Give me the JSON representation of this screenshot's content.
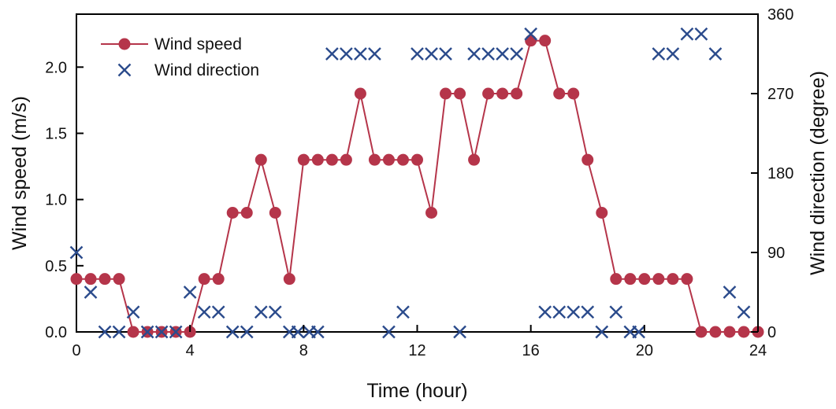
{
  "chart_data": {
    "type": "line",
    "xlabel": "Time (hour)",
    "ylabel": "Wind speed (m/s)",
    "y2label": "Wind direction (degree)",
    "xlim": [
      0,
      24
    ],
    "ylim": [
      0,
      2.4
    ],
    "y2lim": [
      0,
      360
    ],
    "xticks": [
      0,
      4,
      8,
      12,
      16,
      20,
      24
    ],
    "yticks": [
      0.0,
      0.5,
      1.0,
      1.5,
      2.0
    ],
    "ytick_labels": [
      "0.0",
      "0.5",
      "1.0",
      "1.5",
      "2.0"
    ],
    "y2ticks": [
      0,
      90,
      180,
      270,
      360
    ],
    "legend": {
      "placement": "top-left",
      "entries": [
        "Wind speed",
        "Wind direction"
      ]
    },
    "grid": false,
    "colors": {
      "speed": "#b5354a",
      "direction": "#2b4b8c"
    },
    "series": [
      {
        "name": "Wind speed",
        "axis": "left",
        "marker": "circle",
        "x": [
          0,
          0.5,
          1,
          1.5,
          2,
          2.5,
          3,
          3.5,
          4,
          4.5,
          5,
          5.5,
          6,
          6.5,
          7,
          7.5,
          8,
          8.5,
          9,
          9.5,
          10,
          10.5,
          11,
          11.5,
          12,
          12.5,
          13,
          13.5,
          14,
          14.5,
          15,
          15.5,
          16,
          16.5,
          17,
          17.5,
          18,
          18.5,
          19,
          19.5,
          20,
          20.5,
          21,
          21.5,
          22,
          22.5,
          23,
          23.5,
          24
        ],
        "values": [
          0.4,
          0.4,
          0.4,
          0.4,
          0.0,
          0.0,
          0.0,
          0.0,
          0.0,
          0.4,
          0.4,
          0.9,
          0.9,
          1.3,
          0.9,
          0.4,
          1.3,
          1.3,
          1.3,
          1.3,
          1.8,
          1.3,
          1.3,
          1.3,
          1.3,
          0.9,
          1.8,
          1.8,
          1.3,
          1.8,
          1.8,
          1.8,
          2.2,
          2.2,
          1.8,
          1.8,
          1.3,
          0.9,
          0.4,
          0.4,
          0.4,
          0.4,
          0.4,
          0.4,
          0.0,
          0.0,
          0.0,
          0.0,
          0.0
        ]
      },
      {
        "name": "Wind direction",
        "axis": "right",
        "marker": "x",
        "x": [
          0,
          0.5,
          1,
          1.5,
          2,
          2.5,
          3,
          3.5,
          4,
          4.5,
          5,
          5.5,
          6,
          6.5,
          7,
          7.5,
          7.8,
          8.2,
          8.5,
          9,
          9.5,
          10,
          10.5,
          11,
          11.5,
          12,
          12.5,
          13,
          13.5,
          14,
          14.5,
          15,
          15.5,
          16,
          16.5,
          17,
          17.5,
          18,
          18.5,
          19,
          19.5,
          19.8,
          20.5,
          21,
          21.5,
          22,
          22.5,
          23,
          23.5
        ],
        "values": [
          90,
          45,
          0,
          0,
          22.5,
          0,
          0,
          0,
          45,
          22.5,
          22.5,
          0,
          0,
          22.5,
          22.5,
          0,
          0,
          0,
          0,
          315,
          315,
          315,
          315,
          0,
          22.5,
          315,
          315,
          315,
          0,
          315,
          315,
          315,
          315,
          337.5,
          22.5,
          22.5,
          22.5,
          22.5,
          0,
          22.5,
          0,
          0,
          315,
          315,
          337.5,
          337.5,
          315,
          45,
          22.5
        ]
      }
    ]
  }
}
